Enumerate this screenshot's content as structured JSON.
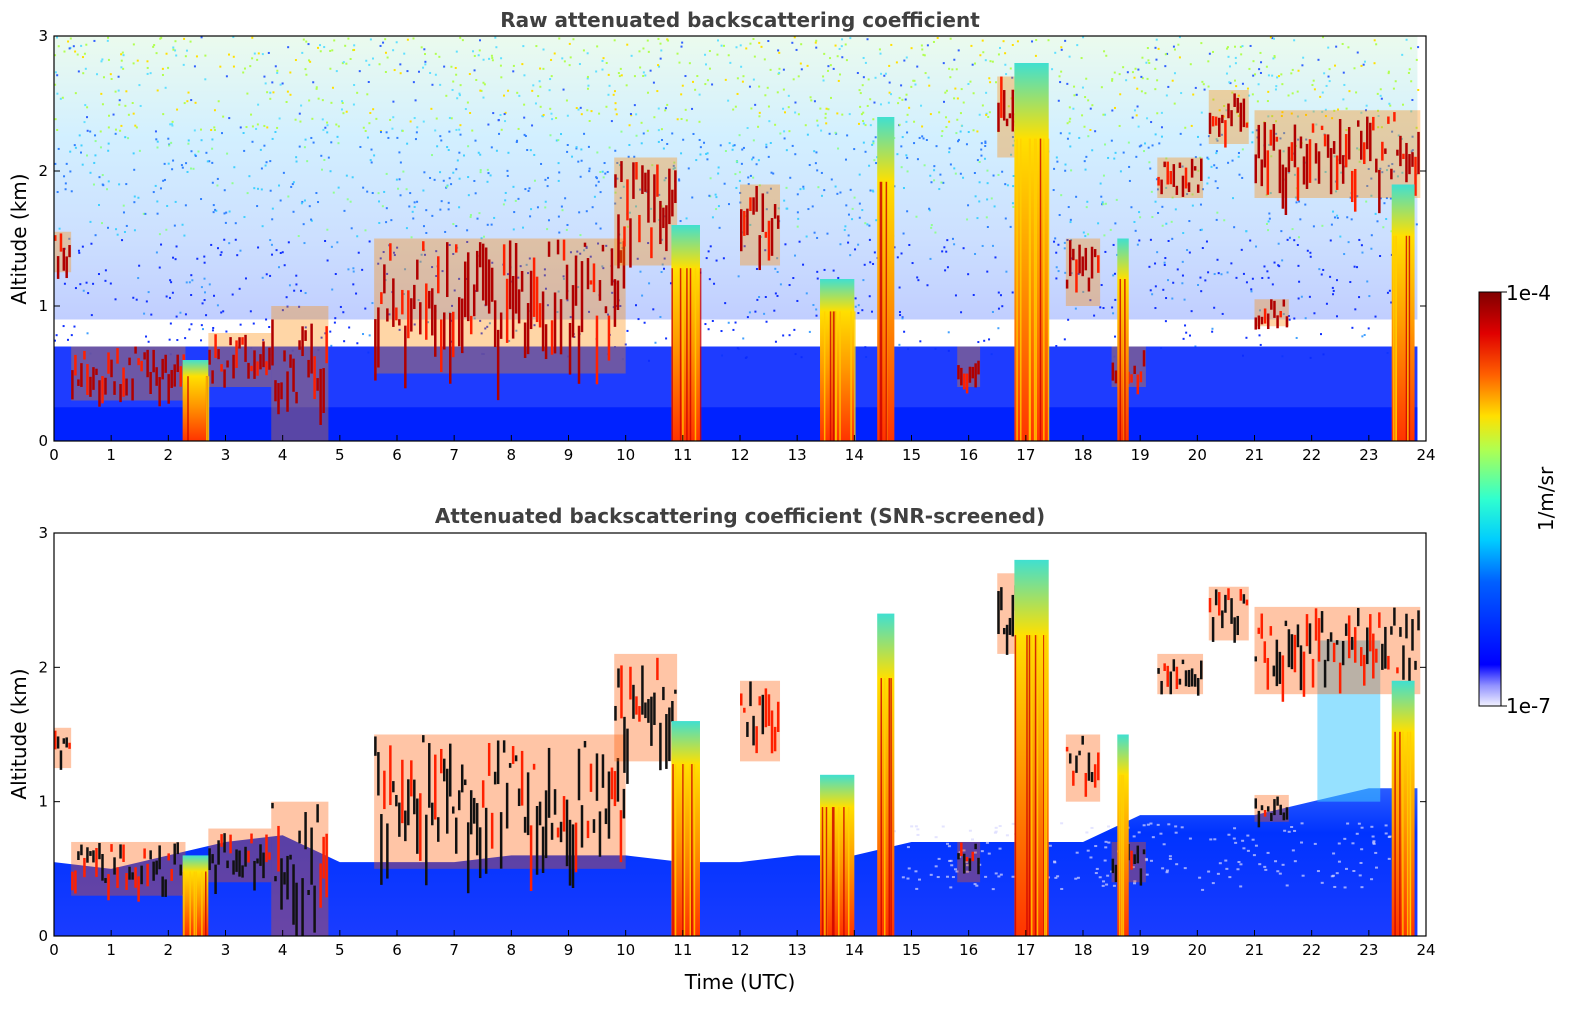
{
  "chart_data": [
    {
      "type": "heatmap",
      "title": "Raw attenuated backscattering coefficient",
      "xlabel": "",
      "ylabel": "Altitude (km)",
      "xlim": [
        0,
        24
      ],
      "ylim": [
        0,
        3
      ],
      "x_ticks": [
        "0",
        "1",
        "2",
        "3",
        "4",
        "5",
        "6",
        "7",
        "8",
        "9",
        "10",
        "11",
        "12",
        "13",
        "14",
        "15",
        "16",
        "17",
        "18",
        "19",
        "20",
        "21",
        "22",
        "23",
        "24"
      ],
      "y_ticks": [
        "0",
        "1",
        "2",
        "3"
      ],
      "grid": false,
      "colormap": "jet",
      "cloud_layers": [
        {
          "t0": 0.0,
          "t1": 0.3,
          "base_km": 1.25,
          "top_km": 1.55
        },
        {
          "t0": 0.3,
          "t1": 2.3,
          "base_km": 0.3,
          "top_km": 0.7
        },
        {
          "t0": 2.7,
          "t1": 3.8,
          "base_km": 0.4,
          "top_km": 0.8
        },
        {
          "t0": 3.8,
          "t1": 4.8,
          "base_km": 0.0,
          "top_km": 1.0
        },
        {
          "t0": 5.6,
          "t1": 10.0,
          "base_km": 0.5,
          "top_km": 1.5
        },
        {
          "t0": 9.8,
          "t1": 10.9,
          "base_km": 1.3,
          "top_km": 2.1
        },
        {
          "t0": 12.0,
          "t1": 12.7,
          "base_km": 1.3,
          "top_km": 1.9
        },
        {
          "t0": 15.8,
          "t1": 16.2,
          "base_km": 0.4,
          "top_km": 0.7
        },
        {
          "t0": 16.5,
          "t1": 17.0,
          "base_km": 2.1,
          "top_km": 2.7
        },
        {
          "t0": 17.7,
          "t1": 18.3,
          "base_km": 1.0,
          "top_km": 1.5
        },
        {
          "t0": 18.5,
          "t1": 19.1,
          "base_km": 0.4,
          "top_km": 0.7
        },
        {
          "t0": 19.3,
          "t1": 20.1,
          "base_km": 1.8,
          "top_km": 2.1
        },
        {
          "t0": 20.2,
          "t1": 20.9,
          "base_km": 2.2,
          "top_km": 2.6
        },
        {
          "t0": 21.0,
          "t1": 21.6,
          "base_km": 0.85,
          "top_km": 1.05
        },
        {
          "t0": 21.0,
          "t1": 23.9,
          "base_km": 1.8,
          "top_km": 2.45
        }
      ],
      "precip_columns": [
        {
          "t0": 2.25,
          "t1": 2.7,
          "top_km": 0.6
        },
        {
          "t0": 10.8,
          "t1": 11.3,
          "top_km": 1.6
        },
        {
          "t0": 13.4,
          "t1": 14.0,
          "top_km": 1.2
        },
        {
          "t0": 14.4,
          "t1": 14.7,
          "top_km": 2.4
        },
        {
          "t0": 16.8,
          "t1": 17.4,
          "top_km": 2.8
        },
        {
          "t0": 18.6,
          "t1": 18.8,
          "top_km": 1.5
        },
        {
          "t0": 23.4,
          "t1": 23.8,
          "top_km": 1.9
        }
      ]
    },
    {
      "type": "heatmap",
      "title": "Attenuated backscattering coefficient (SNR-screened)",
      "xlabel": "Time (UTC)",
      "ylabel": "Altitude (km)",
      "xlim": [
        0,
        24
      ],
      "ylim": [
        0,
        3
      ],
      "x_ticks": [
        "0",
        "1",
        "2",
        "3",
        "4",
        "5",
        "6",
        "7",
        "8",
        "9",
        "10",
        "11",
        "12",
        "13",
        "14",
        "15",
        "16",
        "17",
        "18",
        "19",
        "20",
        "21",
        "22",
        "23",
        "24"
      ],
      "y_ticks": [
        "0",
        "1",
        "2",
        "3"
      ],
      "grid": false,
      "colormap": "jet",
      "screening": "SNR-screened (low-signal pixels masked white)"
    }
  ],
  "colorbar": {
    "label": "1/m/sr",
    "max_label": "1e-4",
    "min_label": "1e-7",
    "scale": "log",
    "colormap": "jet"
  }
}
